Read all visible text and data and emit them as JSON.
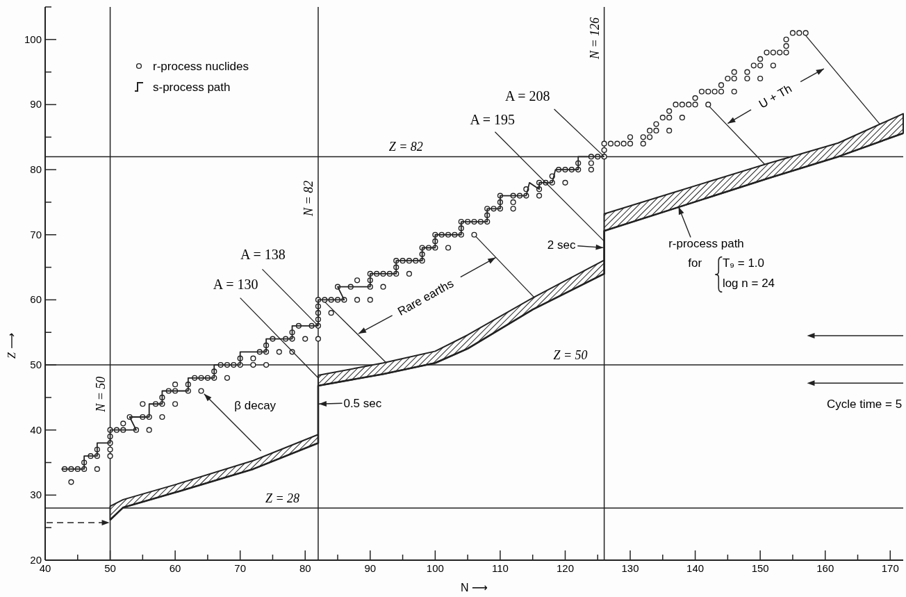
{
  "chart_data": {
    "type": "scatter",
    "xlabel": "N ⟶",
    "ylabel": "Z ⟶",
    "xlim": [
      40,
      172
    ],
    "ylim": [
      20,
      105
    ],
    "xticks": [
      40,
      {
        "value": 45,
        "label": null
      },
      50,
      {
        "value": 55,
        "label": null
      },
      60,
      {
        "value": 65,
        "label": null
      },
      70,
      {
        "value": 75,
        "label": null
      },
      80,
      {
        "value": 85,
        "label": null
      },
      90,
      {
        "value": 95,
        "label": null
      },
      100,
      {
        "value": 105,
        "label": null
      },
      110,
      {
        "value": 115,
        "label": null
      },
      120,
      {
        "value": 125,
        "label": null
      },
      130,
      {
        "value": 135,
        "label": null
      },
      140,
      {
        "value": 145,
        "label": null
      },
      150,
      {
        "value": 155,
        "label": null
      },
      160,
      {
        "value": 165,
        "label": null
      },
      170
    ],
    "yticks": [
      20,
      {
        "value": 25,
        "label": null
      },
      30,
      {
        "value": 35,
        "label": null
      },
      40,
      {
        "value": 45,
        "label": null
      },
      50,
      {
        "value": 55,
        "label": null
      },
      60,
      {
        "value": 65,
        "label": null
      },
      70,
      {
        "value": 75,
        "label": null
      },
      80,
      {
        "value": 85,
        "label": null
      },
      90,
      {
        "value": 95,
        "label": null
      },
      100,
      {
        "value": 105,
        "label": null
      }
    ],
    "legend": "top left",
    "series": [
      {
        "name": "r-process nuclides",
        "marker": "circle",
        "color": "#222222",
        "x": [
          43,
          44,
          45,
          46,
          44,
          46,
          47,
          48,
          48,
          48,
          50,
          50,
          50,
          50,
          50,
          51,
          52,
          54,
          52,
          56,
          53,
          55,
          56,
          58,
          55,
          57,
          58,
          60,
          58,
          59,
          60,
          62,
          60,
          62,
          63,
          64,
          65,
          66,
          64,
          68,
          66,
          67,
          68,
          69,
          70,
          72,
          74,
          70,
          72,
          73,
          74,
          76,
          78,
          74,
          75,
          77,
          78,
          80,
          82,
          78,
          79,
          81,
          82,
          82,
          82,
          82,
          82,
          83,
          84,
          85,
          86,
          84,
          88,
          90,
          85,
          87,
          90,
          92,
          88,
          90,
          90,
          91,
          92,
          93,
          94,
          96,
          94,
          94,
          95,
          96,
          97,
          98,
          98,
          98,
          99,
          100,
          102,
          100,
          100,
          101,
          102,
          103,
          104,
          106,
          104,
          104,
          105,
          106,
          107,
          108,
          108,
          108,
          109,
          110,
          112,
          110,
          112,
          110,
          112,
          113,
          114,
          116,
          114,
          116,
          116,
          117,
          118,
          120,
          118,
          119,
          120,
          121,
          122,
          122,
          124,
          124,
          124,
          125,
          126,
          126,
          126,
          127,
          128,
          129,
          130,
          130,
          132,
          132,
          133,
          133,
          134,
          134,
          135,
          136,
          136,
          136,
          137,
          138,
          139,
          140,
          140,
          138,
          141,
          142,
          143,
          144,
          142,
          144,
          145,
          146,
          146,
          146,
          148,
          148,
          149,
          150,
          150,
          150,
          152,
          151,
          152,
          153,
          154,
          154,
          154,
          155,
          156,
          157
        ],
        "values": [
          34,
          34,
          34,
          34,
          32,
          35,
          36,
          36,
          37,
          34,
          36,
          37,
          38,
          39,
          40,
          40,
          40,
          40,
          41,
          40,
          42,
          42,
          42,
          42,
          44,
          44,
          44,
          44,
          45,
          46,
          46,
          46,
          47,
          47,
          48,
          48,
          48,
          48,
          46,
          48,
          49,
          50,
          50,
          50,
          50,
          50,
          50,
          51,
          51,
          52,
          52,
          52,
          52,
          53,
          54,
          54,
          54,
          54,
          54,
          55,
          56,
          56,
          56,
          57,
          58,
          59,
          60,
          60,
          60,
          60,
          60,
          58,
          60,
          60,
          62,
          62,
          62,
          62,
          63,
          63,
          64,
          64,
          64,
          64,
          64,
          64,
          65,
          66,
          66,
          66,
          66,
          66,
          67,
          68,
          68,
          68,
          68,
          69,
          70,
          70,
          70,
          70,
          70,
          70,
          71,
          72,
          72,
          72,
          72,
          72,
          73,
          74,
          74,
          74,
          74,
          75,
          75,
          76,
          76,
          76,
          76,
          76,
          77,
          77,
          78,
          78,
          78,
          78,
          79,
          80,
          80,
          80,
          80,
          81,
          80,
          81,
          82,
          82,
          82,
          83,
          84,
          84,
          84,
          84,
          84,
          85,
          84,
          85,
          85,
          86,
          86,
          87,
          88,
          88,
          89,
          86,
          90,
          90,
          90,
          90,
          91,
          88,
          92,
          92,
          92,
          92,
          90,
          93,
          94,
          94,
          95,
          92,
          94,
          95,
          96,
          96,
          97,
          94,
          96,
          98,
          98,
          98,
          98,
          99,
          100,
          101,
          101,
          101
        ]
      },
      {
        "name": "s-process path",
        "type": "line",
        "color": "#222222",
        "x": [
          42.5,
          46,
          46,
          48,
          48,
          50,
          50,
          54,
          53,
          56,
          56,
          58,
          58,
          62,
          62,
          66,
          66,
          70,
          70,
          74,
          74,
          78,
          78,
          82,
          82,
          86,
          85,
          90,
          90,
          94,
          94,
          98,
          98,
          100,
          100,
          104,
          104,
          108,
          108,
          110,
          110,
          114,
          114.5,
          116,
          116,
          118,
          118.5,
          122,
          122,
          126
        ],
        "values": [
          34,
          34,
          36,
          36,
          38,
          38,
          40,
          40,
          42,
          42,
          44,
          44,
          46,
          46,
          48,
          48,
          50,
          50,
          52,
          52,
          54,
          54,
          56,
          56,
          60,
          60,
          62,
          62,
          64,
          64,
          66,
          66,
          68,
          68,
          70,
          70,
          72,
          72,
          74,
          74,
          76,
          76,
          78,
          77,
          78,
          78,
          80,
          80,
          82,
          82
        ]
      },
      {
        "type": "line",
        "color": "#222222",
        "x": [
          50,
          52,
          60,
          72,
          82,
          82,
          92,
          100,
          105,
          115,
          126,
          126,
          137,
          151,
          162,
          172
        ],
        "values": [
          26.2,
          28.1,
          30.4,
          34.0,
          38.0,
          46.8,
          48.6,
          50.3,
          52.5,
          58.5,
          64.0,
          70.6,
          74.1,
          78.6,
          82.0,
          85.6
        ],
        "lower": [
          26.2,
          28.1,
          30.4,
          34.0,
          38.0,
          46.8,
          48.6,
          50.3,
          52.5,
          58.5,
          64.0,
          70.6,
          74.1,
          78.6,
          82.0,
          85.6
        ],
        "upper": [
          28.3,
          29.3,
          31.6,
          35.3,
          39.3,
          48.4,
          50.3,
          52.1,
          54.6,
          60.3,
          66.1,
          73.2,
          76.6,
          80.9,
          84.1,
          88.6
        ]
      }
    ],
    "ref_lines": [
      {
        "axis": "x",
        "value": 50,
        "label": "N = 50"
      },
      {
        "axis": "x",
        "value": 82,
        "label": "N = 82"
      },
      {
        "axis": "x",
        "value": 126,
        "label": "N = 126"
      },
      {
        "axis": "y",
        "value": 28,
        "label": "Z = 28"
      },
      {
        "axis": "y",
        "value": 50,
        "label": "Z = 50"
      },
      {
        "axis": "y",
        "value": 82,
        "label": "Z = 82"
      }
    ],
    "annotations": [
      {
        "text": "A = 130",
        "x": 82,
        "y": 48
      },
      {
        "text": "A = 138",
        "x": 82,
        "y": 56
      },
      {
        "text": "A = 195",
        "x": 126,
        "y": 69
      },
      {
        "text": "A = 208",
        "x": 126,
        "y": 82
      },
      {
        "text": "β decay",
        "x": 64,
        "y": 46
      },
      {
        "text": "0.5 sec",
        "x": 82,
        "y": 44
      },
      {
        "text": "2 sec",
        "x": 126,
        "y": 68
      },
      "Rare earths",
      "U + Th",
      {
        "text": "r-process path",
        "x": 137.4,
        "y": 74.4
      },
      "for",
      "T₉ = 1.0",
      "log n = 24",
      "Cycle time = 5"
    ]
  }
}
